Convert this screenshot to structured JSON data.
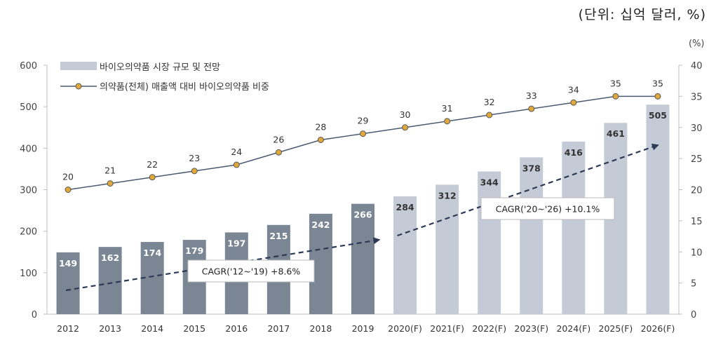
{
  "unit_note": "(단위: 십억 달러, %)",
  "chart_data": {
    "type": "bar",
    "categories": [
      "2012",
      "2013",
      "2014",
      "2015",
      "2016",
      "2017",
      "2018",
      "2019",
      "2020(F)",
      "2021(F)",
      "2022(F)",
      "2023(F)",
      "2024(F)",
      "2025(F)",
      "2026(F)"
    ],
    "series": [
      {
        "name": "바이오의약품 시장 규모 및 전망",
        "type": "bar",
        "axis": "left",
        "values": [
          149,
          162,
          174,
          179,
          197,
          215,
          242,
          266,
          284,
          312,
          344,
          378,
          416,
          461,
          505
        ]
      },
      {
        "name": "의약품(전체) 매출액 대비 바이오의약품 비중",
        "type": "line",
        "axis": "right",
        "values": [
          20,
          21,
          22,
          23,
          24,
          26,
          28,
          29,
          30,
          31,
          32,
          33,
          34,
          35,
          35
        ]
      }
    ],
    "left_axis": {
      "min": 0,
      "max": 600,
      "ticks": [
        0,
        100,
        200,
        300,
        400,
        500,
        600
      ]
    },
    "right_axis": {
      "label": "(%)",
      "min": 0,
      "max": 40,
      "ticks": [
        0,
        5,
        10,
        15,
        20,
        25,
        30,
        35,
        40
      ]
    },
    "annotations": [
      {
        "text": "CAGR('12~'19)  +8.6%"
      },
      {
        "text": "CAGR('20~'26)  +10.1%"
      }
    ],
    "colors": {
      "historical_bar": "#7a8693",
      "forecast_bar": "#c5cbd6",
      "line": "#4a5a70",
      "marker": "#e0a83a",
      "arrow": "#2d3a55"
    },
    "legend_position": "top-left"
  }
}
